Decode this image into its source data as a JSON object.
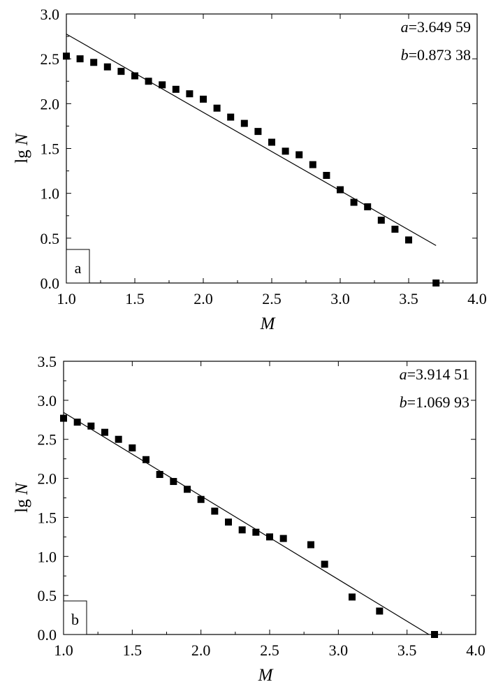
{
  "chart_data": [
    {
      "type": "scatter",
      "panel_label": "a",
      "xlabel": "M",
      "ylabel_prefix": "lg ",
      "ylabel_var": "N",
      "xlim": [
        1.0,
        4.0
      ],
      "ylim": [
        0.0,
        3.0
      ],
      "xticks": [
        "1.0",
        "1.5",
        "2.0",
        "2.5",
        "3.0",
        "3.5",
        "4.0"
      ],
      "yticks": [
        "0.0",
        "0.5",
        "1.0",
        "1.5",
        "2.0",
        "2.5",
        "3.0"
      ],
      "grid": false,
      "coefficients": [
        {
          "var": "a",
          "value": "=3.649 59"
        },
        {
          "var": "b",
          "value": "=0.873 38"
        }
      ],
      "fit_line": {
        "x_start": 1.0,
        "x_end": 3.7,
        "a": 3.64959,
        "b": 0.87338
      },
      "points": [
        {
          "x": 1.0,
          "y": 2.53
        },
        {
          "x": 1.1,
          "y": 2.5
        },
        {
          "x": 1.2,
          "y": 2.46
        },
        {
          "x": 1.3,
          "y": 2.41
        },
        {
          "x": 1.4,
          "y": 2.36
        },
        {
          "x": 1.5,
          "y": 2.31
        },
        {
          "x": 1.6,
          "y": 2.25
        },
        {
          "x": 1.7,
          "y": 2.21
        },
        {
          "x": 1.8,
          "y": 2.16
        },
        {
          "x": 1.9,
          "y": 2.11
        },
        {
          "x": 2.0,
          "y": 2.05
        },
        {
          "x": 2.1,
          "y": 1.95
        },
        {
          "x": 2.2,
          "y": 1.85
        },
        {
          "x": 2.3,
          "y": 1.78
        },
        {
          "x": 2.4,
          "y": 1.69
        },
        {
          "x": 2.5,
          "y": 1.57
        },
        {
          "x": 2.6,
          "y": 1.47
        },
        {
          "x": 2.7,
          "y": 1.43
        },
        {
          "x": 2.8,
          "y": 1.32
        },
        {
          "x": 2.9,
          "y": 1.2
        },
        {
          "x": 3.0,
          "y": 1.04
        },
        {
          "x": 3.1,
          "y": 0.9
        },
        {
          "x": 3.2,
          "y": 0.85
        },
        {
          "x": 3.3,
          "y": 0.7
        },
        {
          "x": 3.4,
          "y": 0.6
        },
        {
          "x": 3.5,
          "y": 0.48
        },
        {
          "x": 3.7,
          "y": 0.0
        }
      ]
    },
    {
      "type": "scatter",
      "panel_label": "b",
      "xlabel": "M",
      "ylabel_prefix": "lg ",
      "ylabel_var": "N",
      "xlim": [
        1.0,
        4.0
      ],
      "ylim": [
        0.0,
        3.5
      ],
      "xticks": [
        "1.0",
        "1.5",
        "2.0",
        "2.5",
        "3.0",
        "3.5",
        "4.0"
      ],
      "yticks": [
        "0.0",
        "0.5",
        "1.0",
        "1.5",
        "2.0",
        "2.5",
        "3.0",
        "3.5"
      ],
      "grid": false,
      "coefficients": [
        {
          "var": "a",
          "value": "=3.914 51"
        },
        {
          "var": "b",
          "value": "=1.069 93"
        }
      ],
      "fit_line": {
        "x_start": 1.0,
        "x_end": 3.66,
        "a": 3.91451,
        "b": 1.06993
      },
      "points": [
        {
          "x": 1.0,
          "y": 2.77
        },
        {
          "x": 1.1,
          "y": 2.72
        },
        {
          "x": 1.2,
          "y": 2.67
        },
        {
          "x": 1.3,
          "y": 2.59
        },
        {
          "x": 1.4,
          "y": 2.5
        },
        {
          "x": 1.5,
          "y": 2.39
        },
        {
          "x": 1.6,
          "y": 2.24
        },
        {
          "x": 1.7,
          "y": 2.05
        },
        {
          "x": 1.8,
          "y": 1.96
        },
        {
          "x": 1.9,
          "y": 1.86
        },
        {
          "x": 2.0,
          "y": 1.73
        },
        {
          "x": 2.1,
          "y": 1.58
        },
        {
          "x": 2.2,
          "y": 1.44
        },
        {
          "x": 2.3,
          "y": 1.34
        },
        {
          "x": 2.4,
          "y": 1.31
        },
        {
          "x": 2.5,
          "y": 1.25
        },
        {
          "x": 2.6,
          "y": 1.23
        },
        {
          "x": 2.8,
          "y": 1.15
        },
        {
          "x": 2.9,
          "y": 0.9
        },
        {
          "x": 3.1,
          "y": 0.48
        },
        {
          "x": 3.3,
          "y": 0.3
        },
        {
          "x": 3.7,
          "y": 0.0
        }
      ]
    }
  ]
}
